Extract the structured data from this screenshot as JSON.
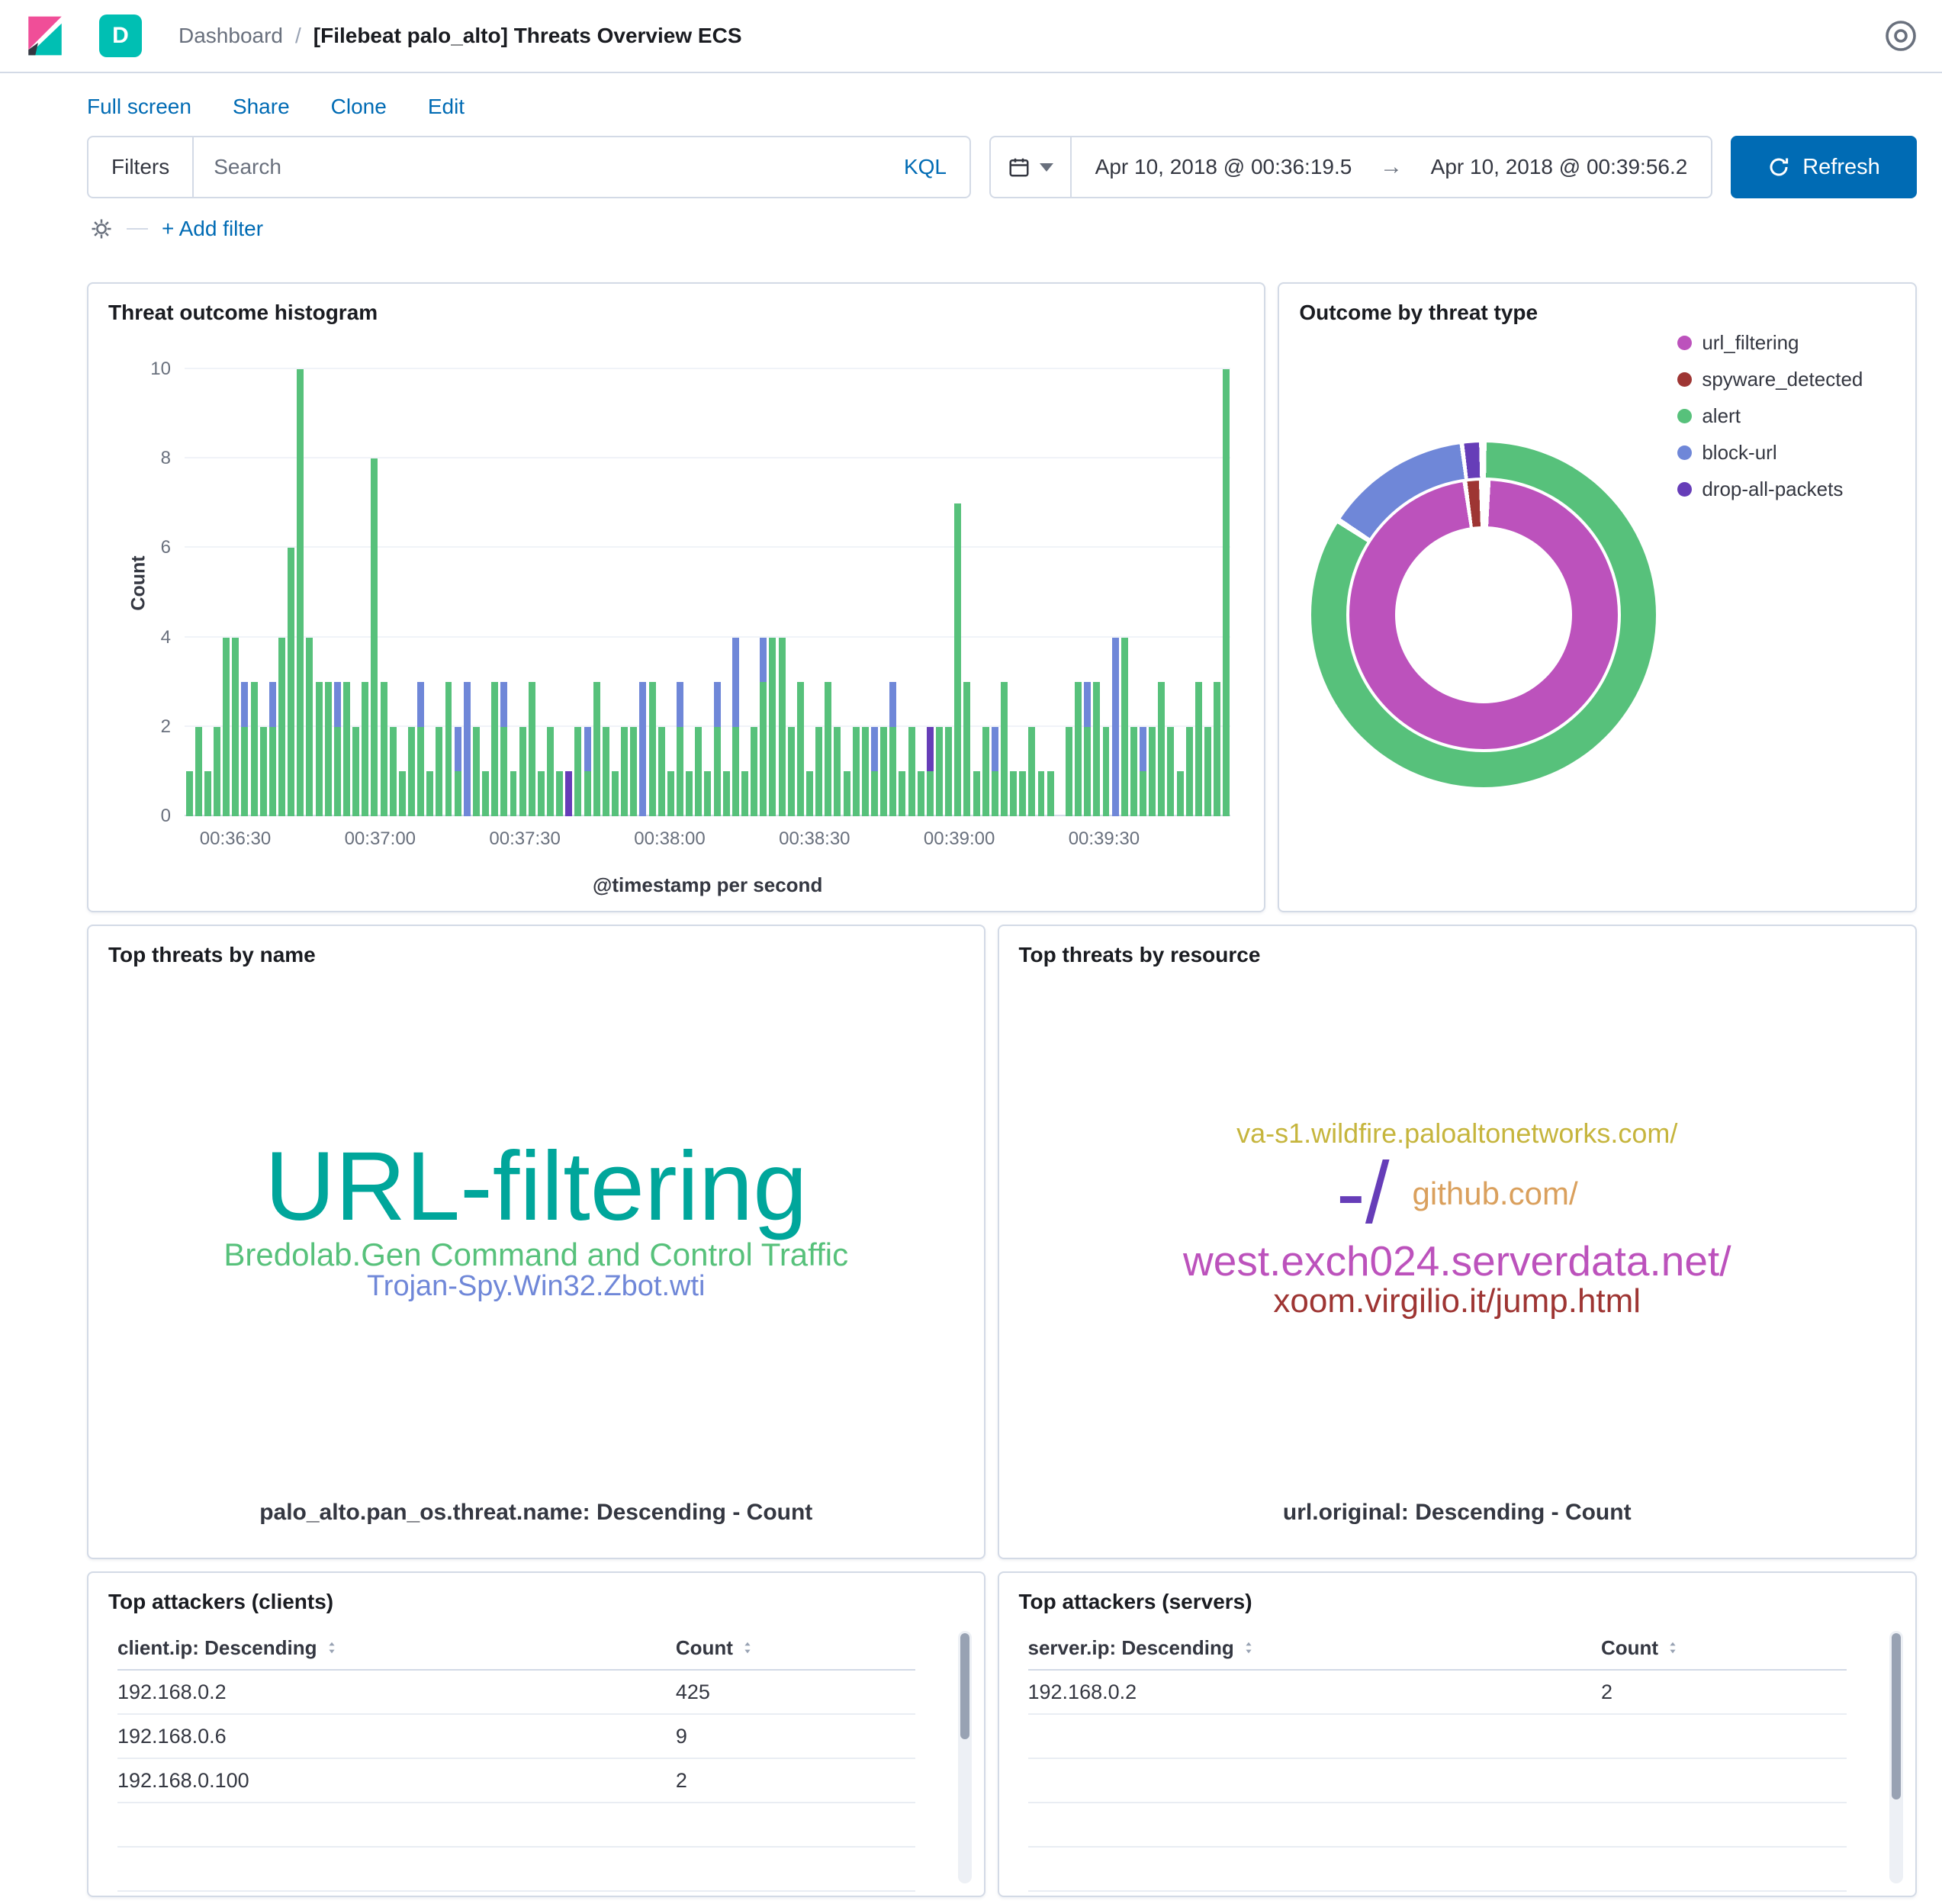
{
  "header": {
    "space_initial": "D",
    "breadcrumb_root": "Dashboard",
    "breadcrumb_sep": "/",
    "title": "[Filebeat palo_alto] Threats Overview ECS"
  },
  "toolbar": {
    "links": [
      "Full screen",
      "Share",
      "Clone",
      "Edit"
    ]
  },
  "query_bar": {
    "filters_label": "Filters",
    "search_placeholder": "Search",
    "kql_label": "KQL",
    "date_start": "Apr 10, 2018 @ 00:36:19.5",
    "date_end": "Apr 10, 2018 @ 00:39:56.2",
    "refresh_label": "Refresh",
    "add_filter_label": "+ Add filter"
  },
  "colors": {
    "link_blue": "#006bb4",
    "primary_button": "#006bb4",
    "border": "#d3dae6",
    "space_badge": "#00bfb3",
    "green": "#57c17b",
    "blue": "#6f87d8",
    "purple": "#663db8",
    "magenta": "#bc52bc",
    "dark_red": "#9e3533",
    "teal": "#00a69b",
    "orange": "#daa05d",
    "gold": "#c6b53d"
  },
  "panels": {
    "histogram": {
      "title": "Threat outcome histogram",
      "type": "bar",
      "ylabel": "Count",
      "xlabel": "@timestamp per second",
      "y_max": 10,
      "y_ticks": [
        0,
        2,
        4,
        6,
        8,
        10
      ],
      "x_ticks": [
        {
          "label": "00:36:30",
          "pct": 4.85
        },
        {
          "label": "00:37:00",
          "pct": 18.69
        },
        {
          "label": "00:37:30",
          "pct": 32.53
        },
        {
          "label": "00:38:00",
          "pct": 46.38
        },
        {
          "label": "00:38:30",
          "pct": 60.22
        },
        {
          "label": "00:39:00",
          "pct": 74.06
        },
        {
          "label": "00:39:30",
          "pct": 87.9
        }
      ],
      "series_colors": [
        "#57c17b",
        "#6f87d8",
        "#663db8"
      ],
      "series_names": [
        "alert",
        "block-url",
        "drop-all-packets"
      ],
      "bars": [
        [
          1,
          0
        ],
        [
          2,
          0
        ],
        [
          1,
          0
        ],
        [
          2,
          0
        ],
        [
          4,
          0
        ],
        [
          4,
          0
        ],
        [
          2,
          1
        ],
        [
          3,
          0
        ],
        [
          2,
          0
        ],
        [
          2,
          1
        ],
        [
          4,
          0
        ],
        [
          6,
          0
        ],
        [
          10,
          0
        ],
        [
          4,
          0
        ],
        [
          3,
          0
        ],
        [
          3,
          0
        ],
        [
          2,
          1
        ],
        [
          3,
          0
        ],
        [
          2,
          0
        ],
        [
          3,
          0
        ],
        [
          8,
          0
        ],
        [
          3,
          0
        ],
        [
          2,
          0
        ],
        [
          1,
          0
        ],
        [
          2,
          0
        ],
        [
          2,
          1
        ],
        [
          1,
          0
        ],
        [
          2,
          0
        ],
        [
          3,
          0
        ],
        [
          1,
          1
        ],
        [
          0,
          3
        ],
        [
          2,
          0
        ],
        [
          1,
          0
        ],
        [
          3,
          0
        ],
        [
          2,
          1
        ],
        [
          1,
          0
        ],
        [
          2,
          0
        ],
        [
          3,
          0
        ],
        [
          1,
          0
        ],
        [
          2,
          0
        ],
        [
          1,
          0
        ],
        [
          0,
          0,
          1
        ],
        [
          2,
          0
        ],
        [
          1,
          1
        ],
        [
          3,
          0
        ],
        [
          2,
          0
        ],
        [
          1,
          0
        ],
        [
          2,
          0
        ],
        [
          2,
          0
        ],
        [
          0,
          3
        ],
        [
          3,
          0
        ],
        [
          2,
          0
        ],
        [
          1,
          0
        ],
        [
          2,
          1
        ],
        [
          1,
          0
        ],
        [
          2,
          0
        ],
        [
          1,
          0
        ],
        [
          2,
          1
        ],
        [
          1,
          0
        ],
        [
          2,
          2
        ],
        [
          1,
          0
        ],
        [
          2,
          0
        ],
        [
          3,
          1
        ],
        [
          4,
          0
        ],
        [
          4,
          0
        ],
        [
          2,
          0
        ],
        [
          3,
          0
        ],
        [
          1,
          0
        ],
        [
          2,
          0
        ],
        [
          3,
          0
        ],
        [
          2,
          0
        ],
        [
          1,
          0
        ],
        [
          2,
          0
        ],
        [
          2,
          0
        ],
        [
          1,
          1
        ],
        [
          2,
          0
        ],
        [
          2,
          1
        ],
        [
          1,
          0
        ],
        [
          2,
          0
        ],
        [
          1,
          0
        ],
        [
          1,
          0,
          1
        ],
        [
          2,
          0
        ],
        [
          2,
          0
        ],
        [
          7,
          0
        ],
        [
          3,
          0
        ],
        [
          1,
          0
        ],
        [
          2,
          0
        ],
        [
          1,
          1
        ],
        [
          3,
          0
        ],
        [
          1,
          0
        ],
        [
          1,
          0
        ],
        [
          2,
          0
        ],
        [
          1,
          0
        ],
        [
          1,
          0
        ],
        [
          0,
          0
        ],
        [
          2,
          0
        ],
        [
          3,
          0
        ],
        [
          2,
          1
        ],
        [
          3,
          0
        ],
        [
          2,
          0
        ],
        [
          0,
          4
        ],
        [
          4,
          0
        ],
        [
          2,
          0
        ],
        [
          1,
          1
        ],
        [
          2,
          0
        ],
        [
          3,
          0
        ],
        [
          2,
          0
        ],
        [
          1,
          0
        ],
        [
          2,
          0
        ],
        [
          3,
          0
        ],
        [
          2,
          0
        ],
        [
          3,
          0
        ],
        [
          10,
          0
        ]
      ]
    },
    "donut": {
      "title": "Outcome by threat type",
      "type": "pie",
      "legend": [
        {
          "label": "url_filtering",
          "color": "#bc52bc"
        },
        {
          "label": "spyware_detected",
          "color": "#9e3533"
        },
        {
          "label": "alert",
          "color": "#57c17b"
        },
        {
          "label": "block-url",
          "color": "#6f87d8"
        },
        {
          "label": "drop-all-packets",
          "color": "#663db8"
        }
      ],
      "outer_segments": [
        {
          "label": "alert",
          "color": "#57c17b",
          "from": 1,
          "to": 302
        },
        {
          "label": "block-url",
          "color": "#6f87d8",
          "from": 304,
          "to": 352
        },
        {
          "label": "drop-all-packets",
          "color": "#663db8",
          "from": 353.5,
          "to": 358.5
        }
      ],
      "inner_segments": [
        {
          "label": "url_filtering",
          "color": "#bc52bc",
          "from": 3,
          "to": 351
        },
        {
          "label": "spyware_detected",
          "color": "#9e3533",
          "from": 353,
          "to": 358
        }
      ]
    },
    "tag_name": {
      "title": "Top threats by name",
      "caption": "palo_alto.pan_os.threat.name: Descending - Count",
      "rows": [
        [
          {
            "text": "URL-filtering",
            "color": "#00a69b",
            "size": 128
          }
        ],
        [
          {
            "text": "Bredolab.Gen Command and Control Traffic",
            "color": "#57c17b",
            "size": 42
          }
        ],
        [
          {
            "text": "Trojan-Spy.Win32.Zbot.wti",
            "color": "#6f87d8",
            "size": 38
          }
        ]
      ]
    },
    "tag_resource": {
      "title": "Top threats by resource",
      "caption": "url.original: Descending - Count",
      "rows": [
        [
          {
            "text": "va-s1.wildfire.paloaltonetworks.com/",
            "color": "#c6b53d",
            "size": 36
          }
        ],
        [
          {
            "text": "-/",
            "color": "#663db8",
            "size": 114
          },
          {
            "text": "github.com/",
            "color": "#daa05d",
            "size": 42
          }
        ],
        [
          {
            "text": "west.exch024.serverdata.net/",
            "color": "#bc52bc",
            "size": 55
          }
        ],
        [
          {
            "text": "xoom.virgilio.it/jump.html",
            "color": "#9e3533",
            "size": 44
          }
        ]
      ]
    },
    "clients": {
      "title": "Top attackers (clients)",
      "type": "table",
      "columns": [
        "client.ip: Descending",
        "Count"
      ],
      "rows": [
        [
          "192.168.0.2",
          "425"
        ],
        [
          "192.168.0.6",
          "9"
        ],
        [
          "192.168.0.100",
          "2"
        ]
      ],
      "empty_rows": 2
    },
    "servers": {
      "title": "Top attackers (servers)",
      "type": "table",
      "columns": [
        "server.ip: Descending",
        "Count"
      ],
      "rows": [
        [
          "192.168.0.2",
          "2"
        ]
      ],
      "empty_rows": 4
    }
  }
}
